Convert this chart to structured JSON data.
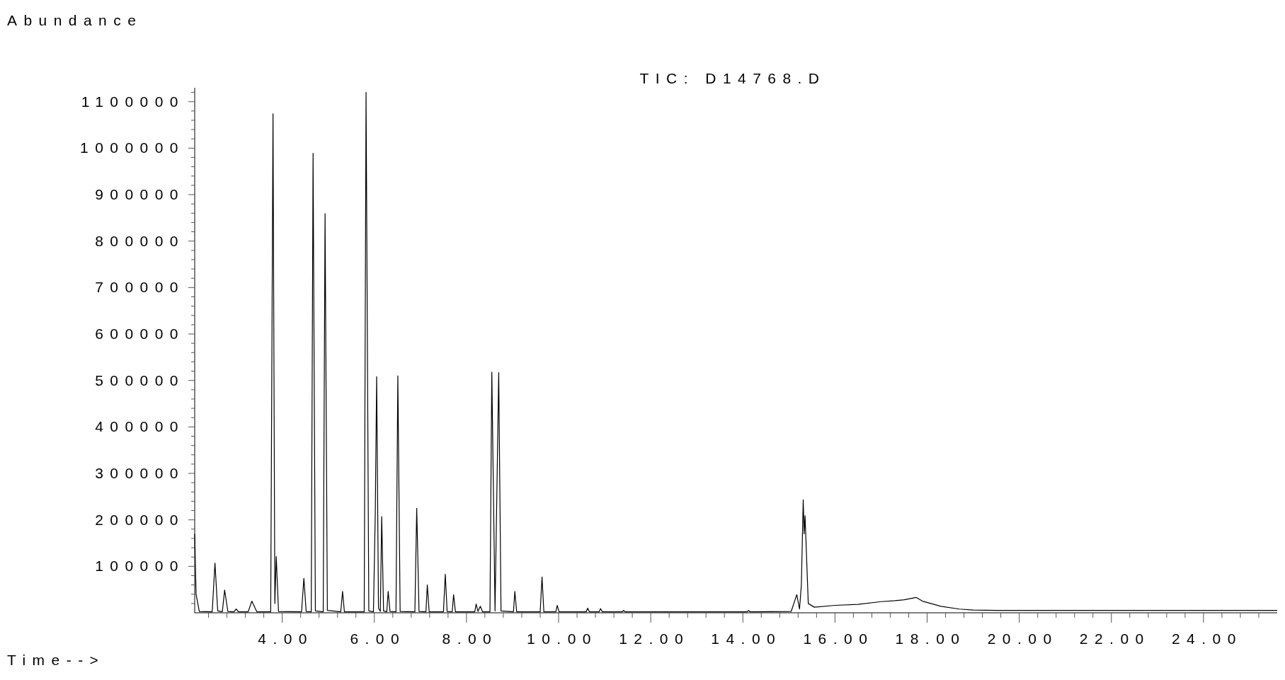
{
  "chart_data": {
    "type": "line",
    "title": "TIC: D14768.D",
    "xlabel": "Time-->",
    "ylabel": "Abundance",
    "xlim": [
      2.1,
      25.6
    ],
    "ylim": [
      0,
      1130000
    ],
    "xticks": [
      {
        "value": 2.4,
        "label": null
      },
      {
        "value": 2.8,
        "label": null
      },
      {
        "value": 3.2,
        "label": null
      },
      {
        "value": 3.6,
        "label": null
      },
      {
        "value": 4,
        "label": "4.00"
      },
      {
        "value": 4.4,
        "label": null
      },
      {
        "value": 4.8,
        "label": null
      },
      {
        "value": 5.2,
        "label": null
      },
      {
        "value": 5.6,
        "label": null
      },
      {
        "value": 6,
        "label": "6.00"
      },
      {
        "value": 6.4,
        "label": null
      },
      {
        "value": 6.8,
        "label": null
      },
      {
        "value": 7.2,
        "label": null
      },
      {
        "value": 7.6,
        "label": null
      },
      {
        "value": 8,
        "label": "8.00"
      },
      {
        "value": 8.4,
        "label": null
      },
      {
        "value": 8.8,
        "label": null
      },
      {
        "value": 9.2,
        "label": null
      },
      {
        "value": 9.6,
        "label": null
      },
      {
        "value": 10,
        "label": "10.00"
      },
      {
        "value": 10.4,
        "label": null
      },
      {
        "value": 10.8,
        "label": null
      },
      {
        "value": 11.2,
        "label": null
      },
      {
        "value": 11.6,
        "label": null
      },
      {
        "value": 12,
        "label": "12.00"
      },
      {
        "value": 12.4,
        "label": null
      },
      {
        "value": 12.8,
        "label": null
      },
      {
        "value": 13.2,
        "label": null
      },
      {
        "value": 13.6,
        "label": null
      },
      {
        "value": 14,
        "label": "14.00"
      },
      {
        "value": 14.4,
        "label": null
      },
      {
        "value": 14.8,
        "label": null
      },
      {
        "value": 15.2,
        "label": null
      },
      {
        "value": 15.6,
        "label": null
      },
      {
        "value": 16,
        "label": "16.00"
      },
      {
        "value": 16.4,
        "label": null
      },
      {
        "value": 16.8,
        "label": null
      },
      {
        "value": 17.2,
        "label": null
      },
      {
        "value": 17.6,
        "label": null
      },
      {
        "value": 18,
        "label": "18.00"
      },
      {
        "value": 18.4,
        "label": null
      },
      {
        "value": 18.8,
        "label": null
      },
      {
        "value": 19.2,
        "label": null
      },
      {
        "value": 19.6,
        "label": null
      },
      {
        "value": 20,
        "label": "20.00"
      },
      {
        "value": 20.4,
        "label": null
      },
      {
        "value": 20.8,
        "label": null
      },
      {
        "value": 21.2,
        "label": null
      },
      {
        "value": 21.6,
        "label": null
      },
      {
        "value": 22,
        "label": "22.00"
      },
      {
        "value": 22.4,
        "label": null
      },
      {
        "value": 22.8,
        "label": null
      },
      {
        "value": 23.2,
        "label": null
      },
      {
        "value": 23.6,
        "label": null
      },
      {
        "value": 24,
        "label": "24.00"
      },
      {
        "value": 24.4,
        "label": null
      },
      {
        "value": 24.8,
        "label": null
      },
      {
        "value": 25.2,
        "label": null
      }
    ],
    "yticks": [
      {
        "value": 20000,
        "label": null
      },
      {
        "value": 40000,
        "label": null
      },
      {
        "value": 60000,
        "label": null
      },
      {
        "value": 80000,
        "label": null
      },
      100000,
      {
        "value": 120000,
        "label": null
      },
      {
        "value": 140000,
        "label": null
      },
      {
        "value": 160000,
        "label": null
      },
      {
        "value": 180000,
        "label": null
      },
      200000,
      {
        "value": 220000,
        "label": null
      },
      {
        "value": 240000,
        "label": null
      },
      {
        "value": 260000,
        "label": null
      },
      {
        "value": 280000,
        "label": null
      },
      300000,
      {
        "value": 320000,
        "label": null
      },
      {
        "value": 340000,
        "label": null
      },
      {
        "value": 360000,
        "label": null
      },
      {
        "value": 380000,
        "label": null
      },
      400000,
      {
        "value": 420000,
        "label": null
      },
      {
        "value": 440000,
        "label": null
      },
      {
        "value": 460000,
        "label": null
      },
      {
        "value": 480000,
        "label": null
      },
      500000,
      {
        "value": 520000,
        "label": null
      },
      {
        "value": 540000,
        "label": null
      },
      {
        "value": 560000,
        "label": null
      },
      {
        "value": 580000,
        "label": null
      },
      600000,
      {
        "value": 620000,
        "label": null
      },
      {
        "value": 640000,
        "label": null
      },
      {
        "value": 660000,
        "label": null
      },
      {
        "value": 680000,
        "label": null
      },
      700000,
      {
        "value": 720000,
        "label": null
      },
      {
        "value": 740000,
        "label": null
      },
      {
        "value": 760000,
        "label": null
      },
      {
        "value": 780000,
        "label": null
      },
      800000,
      {
        "value": 820000,
        "label": null
      },
      {
        "value": 840000,
        "label": null
      },
      {
        "value": 860000,
        "label": null
      },
      {
        "value": 880000,
        "label": null
      },
      900000,
      {
        "value": 920000,
        "label": null
      },
      {
        "value": 940000,
        "label": null
      },
      {
        "value": 960000,
        "label": null
      },
      {
        "value": 980000,
        "label": null
      },
      1000000,
      {
        "value": 1020000,
        "label": null
      },
      {
        "value": 1040000,
        "label": null
      },
      {
        "value": 1060000,
        "label": null
      },
      {
        "value": 1080000,
        "label": null
      },
      1100000,
      {
        "value": 1120000,
        "label": null
      }
    ],
    "series": [
      {
        "color": "#000000",
        "x": [
          2.1,
          2.13,
          2.2,
          2.48,
          2.54,
          2.6,
          2.7,
          2.75,
          2.82,
          2.95,
          3.0,
          3.05,
          3.26,
          3.34,
          3.45,
          3.75,
          3.8,
          3.84,
          3.87,
          3.92,
          4.42,
          4.47,
          4.52,
          4.63,
          4.67,
          4.72,
          4.89,
          4.93,
          4.98,
          5.27,
          5.31,
          5.35,
          5.78,
          5.82,
          5.88,
          5.98,
          6.02,
          6.05,
          6.09,
          6.13,
          6.16,
          6.2,
          6.27,
          6.3,
          6.34,
          6.47,
          6.51,
          6.56,
          6.88,
          6.92,
          6.97,
          7.12,
          7.15,
          7.19,
          7.5,
          7.54,
          7.58,
          7.69,
          7.72,
          7.76,
          8.18,
          8.21,
          8.25,
          8.3,
          8.35,
          8.51,
          8.55,
          8.62,
          8.7,
          8.75,
          9.02,
          9.05,
          9.09,
          9.6,
          9.64,
          9.68,
          9.94,
          9.97,
          10.01,
          10.6,
          10.63,
          10.67,
          10.88,
          10.91,
          10.95,
          11.38,
          11.41,
          11.45,
          14.09,
          14.12,
          14.16,
          15.05,
          15.17,
          15.23,
          15.27,
          15.31,
          15.33,
          15.35,
          15.42,
          15.55,
          16.0,
          16.5,
          17.0,
          17.3,
          17.5,
          17.76,
          17.9,
          18.3,
          18.7,
          19.0,
          19.5,
          20.5,
          25.6
        ],
        "values": [
          170000,
          40000,
          3000,
          2000,
          107000,
          4000,
          2000,
          49000,
          3000,
          2000,
          8000,
          2000,
          2000,
          25000,
          2000,
          2000,
          1074000,
          20000,
          121000,
          3000,
          2000,
          74000,
          3000,
          2000,
          989000,
          4000,
          2000,
          859000,
          5000,
          2000,
          46000,
          2000,
          2000,
          1120000,
          4000,
          2000,
          213000,
          508000,
          10000,
          3000,
          207000,
          4000,
          2000,
          46000,
          3000,
          2000,
          510000,
          3000,
          2000,
          225000,
          3000,
          2000,
          60000,
          2000,
          2000,
          83000,
          3000,
          2000,
          39000,
          2000,
          2000,
          19000,
          3000,
          14000,
          2000,
          2000,
          518000,
          4000,
          517000,
          4000,
          2000,
          46000,
          2000,
          2000,
          77000,
          2000,
          2000,
          16000,
          2000,
          2000,
          10000,
          2000,
          2000,
          9000,
          2000,
          2000,
          5000,
          2000,
          2000,
          5000,
          2000,
          3000,
          39000,
          8000,
          60000,
          243000,
          170000,
          209000,
          20000,
          12000,
          16000,
          18000,
          24000,
          26000,
          28000,
          33000,
          25000,
          14000,
          8000,
          6000,
          5000,
          5000,
          5000
        ]
      }
    ]
  }
}
